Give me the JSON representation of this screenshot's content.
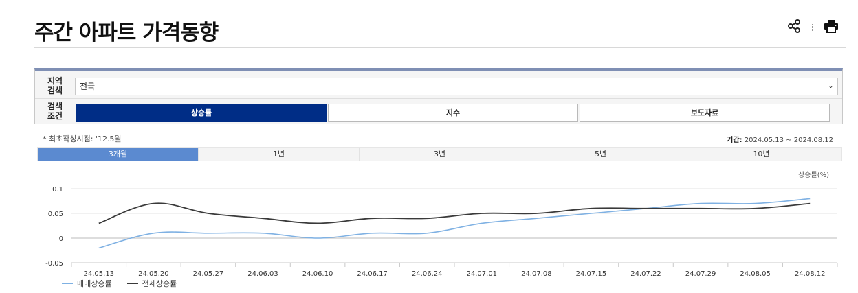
{
  "page": {
    "title": "주간 아파트 가격동향"
  },
  "tools": {
    "share_icon": "share-icon",
    "print_icon": "print-icon"
  },
  "search": {
    "region_label": "지역\n검색",
    "region_value": "전국",
    "condition_label": "검색\n조건",
    "conditions": [
      "상승률",
      "지수",
      "보도자료"
    ],
    "active_condition": 0
  },
  "info": {
    "note": "* 최초작성시점: '12.5월",
    "period_label": "기간:",
    "period_value": "2024.05.13 ~ 2024.08.12"
  },
  "range_tabs": [
    "3개월",
    "1년",
    "3년",
    "5년",
    "10년"
  ],
  "active_range": 0,
  "chart_data": {
    "type": "line",
    "ylabel": "상승률(%)",
    "ylim": [
      -0.05,
      0.1
    ],
    "yticks": [
      "0.1",
      "0.05",
      "0",
      "-0.05"
    ],
    "ytick_values": [
      0.1,
      0.05,
      0,
      -0.05
    ],
    "categories": [
      "24.05.13",
      "24.05.20",
      "24.05.27",
      "24.06.03",
      "24.06.10",
      "24.06.17",
      "24.06.24",
      "24.07.01",
      "24.07.08",
      "24.07.15",
      "24.07.22",
      "24.07.29",
      "24.08.05",
      "24.08.12"
    ],
    "series": [
      {
        "name": "매매상승률",
        "color": "#7fb1e3",
        "values": [
          -0.02,
          0.01,
          0.01,
          0.01,
          0.0,
          0.01,
          0.01,
          0.03,
          0.04,
          0.05,
          0.06,
          0.07,
          0.07,
          0.08
        ]
      },
      {
        "name": "전세상승률",
        "color": "#3a3a3a",
        "values": [
          0.03,
          0.07,
          0.05,
          0.04,
          0.03,
          0.04,
          0.04,
          0.05,
          0.05,
          0.06,
          0.06,
          0.06,
          0.06,
          0.07
        ]
      }
    ],
    "grid": true,
    "legend": "bottom-left"
  }
}
